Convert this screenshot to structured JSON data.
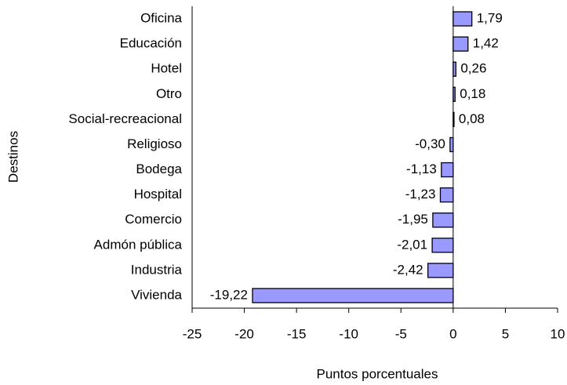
{
  "chart_data": {
    "type": "barh",
    "categories": [
      "Oficina",
      "Educación",
      "Hotel",
      "Otro",
      "Social-recreacional",
      "Religioso",
      "Bodega",
      "Hospital",
      "Comercio",
      "Admón pública",
      "Industria",
      "Vivienda"
    ],
    "values": [
      1.79,
      1.42,
      0.26,
      0.18,
      0.08,
      -0.3,
      -1.13,
      -1.23,
      -1.95,
      -2.01,
      -2.42,
      -19.22
    ],
    "value_labels": [
      "1,79",
      "1,42",
      "0,26",
      "0,18",
      "0,08",
      "-0,30",
      "-1,13",
      "-1,23",
      "-1,95",
      "-2,01",
      "-2,42",
      "-19,22"
    ],
    "color": "#9999ff",
    "xlim": [
      -25,
      10
    ],
    "xticks": [
      -25,
      -20,
      -15,
      -10,
      -5,
      0,
      5,
      10
    ],
    "x_label": "Puntos  porcentuales",
    "y_label": "Destinos"
  }
}
